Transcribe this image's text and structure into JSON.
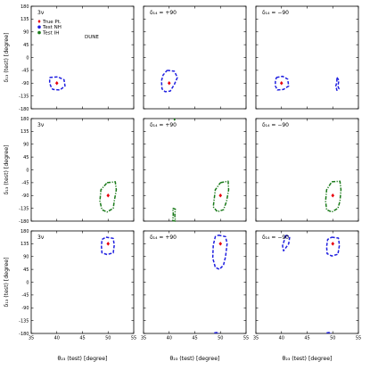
{
  "chart_data": {
    "type": "scatter",
    "layout": "3x3 grid of contour plots",
    "xlabel": "θ₂₃ (test) [degree]",
    "ylabel": "δ₁₃ (test) [degree]",
    "xlim": [
      35,
      55
    ],
    "ylim": [
      -180,
      180
    ],
    "xticks": [
      35,
      40,
      45,
      50,
      55
    ],
    "yticks": [
      -180,
      -135,
      -90,
      -45,
      0,
      45,
      90,
      135,
      180
    ],
    "legend": {
      "placement": "top-left (first panel)",
      "entries": [
        {
          "label": "True Pt.",
          "color": "#e8000b",
          "marker": "diamond"
        },
        {
          "label": "Test NH",
          "color": "#1f1fe0",
          "marker": "circle"
        },
        {
          "label": "Test IH",
          "color": "#1a7a1a",
          "marker": "circle"
        }
      ]
    },
    "experiment_label": "DUNE",
    "colors": {
      "nh": "#1f1fe0",
      "ih": "#1a7a1a",
      "true": "#e8000b"
    },
    "panels": [
      {
        "row": 0,
        "col": 0,
        "title": "3ν",
        "true_point": {
          "x": 40,
          "y": -90
        },
        "contours": [
          {
            "type": "NH",
            "points": [
              [
                38.6,
                -70
              ],
              [
                40.2,
                -68
              ],
              [
                41.4,
                -78
              ],
              [
                41.6,
                -100
              ],
              [
                40.6,
                -114
              ],
              [
                39.2,
                -112
              ],
              [
                38.8,
                -100
              ],
              [
                38.6,
                -88
              ],
              [
                38.6,
                -70
              ]
            ]
          }
        ]
      },
      {
        "row": 0,
        "col": 1,
        "title": "δ₁₄ = +90",
        "true_point": {
          "x": 40,
          "y": -90
        },
        "contours": [
          {
            "type": "NH",
            "points": [
              [
                39.6,
                -45
              ],
              [
                41,
                -48
              ],
              [
                41.6,
                -70
              ],
              [
                41,
                -95
              ],
              [
                40.2,
                -118
              ],
              [
                39.2,
                -120
              ],
              [
                38.6,
                -110
              ],
              [
                38.5,
                -82
              ],
              [
                38.8,
                -62
              ],
              [
                39.6,
                -45
              ]
            ]
          }
        ]
      },
      {
        "row": 0,
        "col": 2,
        "title": "δ₁₄ = −90",
        "true_point": {
          "x": 40,
          "y": -90
        },
        "contours": [
          {
            "type": "NH",
            "points": [
              [
                39,
                -70
              ],
              [
                40.2,
                -66
              ],
              [
                41.2,
                -76
              ],
              [
                41.4,
                -100
              ],
              [
                40.4,
                -112
              ],
              [
                39.2,
                -114
              ],
              [
                38.8,
                -100
              ],
              [
                38.8,
                -85
              ],
              [
                39,
                -70
              ]
            ]
          },
          {
            "type": "NH",
            "points": [
              [
                50.8,
                -70
              ],
              [
                51.2,
                -80
              ],
              [
                51,
                -100
              ],
              [
                51.2,
                -110
              ],
              [
                50.8,
                -115
              ],
              [
                50.6,
                -100
              ],
              [
                50.8,
                -85
              ],
              [
                50.8,
                -70
              ]
            ]
          }
        ]
      },
      {
        "row": 1,
        "col": 0,
        "title": "3ν",
        "true_point": {
          "x": 50,
          "y": -90
        },
        "contours": [
          {
            "type": "IH",
            "points": [
              [
                49.8,
                -45
              ],
              [
                51.4,
                -42
              ],
              [
                51.6,
                -70
              ],
              [
                51.2,
                -110
              ],
              [
                51,
                -135
              ],
              [
                49.8,
                -148
              ],
              [
                48.8,
                -140
              ],
              [
                48.4,
                -110
              ],
              [
                48.6,
                -70
              ],
              [
                49.8,
                -45
              ]
            ]
          }
        ]
      },
      {
        "row": 1,
        "col": 1,
        "title": "δ₁₄ = +90",
        "true_point": {
          "x": 50,
          "y": -90
        },
        "contours": [
          {
            "type": "IH",
            "points": [
              [
                50,
                -45
              ],
              [
                51.5,
                -40
              ],
              [
                51.6,
                -70
              ],
              [
                51.2,
                -110
              ],
              [
                50.6,
                -140
              ],
              [
                49.4,
                -147
              ],
              [
                48.6,
                -130
              ],
              [
                48.8,
                -100
              ],
              [
                49,
                -70
              ],
              [
                50,
                -45
              ]
            ]
          },
          {
            "type": "IH",
            "points": [
              [
                40.7,
                -135
              ],
              [
                41.2,
                -138
              ],
              [
                41.1,
                -160
              ],
              [
                41.2,
                -180
              ],
              [
                40.7,
                -178
              ],
              [
                40.8,
                -155
              ],
              [
                40.7,
                -135
              ]
            ]
          },
          {
            "type": "IH",
            "points": [
              [
                40.9,
                175
              ],
              [
                41.1,
                176
              ],
              [
                41,
                180
              ]
            ]
          }
        ]
      },
      {
        "row": 1,
        "col": 2,
        "title": "δ₁₄ = −90",
        "true_point": {
          "x": 50,
          "y": -90
        },
        "contours": [
          {
            "type": "IH",
            "points": [
              [
                49.8,
                -42
              ],
              [
                51.4,
                -40
              ],
              [
                51.6,
                -70
              ],
              [
                51.4,
                -110
              ],
              [
                51,
                -135
              ],
              [
                49.8,
                -148
              ],
              [
                48.8,
                -140
              ],
              [
                48.6,
                -110
              ],
              [
                48.8,
                -70
              ],
              [
                49.8,
                -42
              ]
            ]
          }
        ]
      },
      {
        "row": 2,
        "col": 0,
        "title": "3ν",
        "true_point": {
          "x": 50,
          "y": 135
        },
        "contours": [
          {
            "type": "NH",
            "points": [
              [
                49.6,
                158
              ],
              [
                51,
                154
              ],
              [
                51.2,
                130
              ],
              [
                51,
                103
              ],
              [
                49.8,
                97
              ],
              [
                48.8,
                103
              ],
              [
                48.7,
                125
              ],
              [
                48.8,
                150
              ],
              [
                49.6,
                158
              ]
            ]
          }
        ]
      },
      {
        "row": 2,
        "col": 1,
        "title": "δ₁₄ = +90",
        "true_point": {
          "x": 50,
          "y": 135
        },
        "contours": [
          {
            "type": "NH",
            "points": [
              [
                49.6,
                165
              ],
              [
                51,
                160
              ],
              [
                51.3,
                135
              ],
              [
                51,
                90
              ],
              [
                50.6,
                60
              ],
              [
                49.8,
                45
              ],
              [
                49,
                52
              ],
              [
                48.5,
                85
              ],
              [
                48.6,
                130
              ],
              [
                49,
                160
              ],
              [
                49.6,
                165
              ]
            ]
          },
          {
            "type": "NH",
            "points": [
              [
                48.8,
                -178
              ],
              [
                49.6,
                -176
              ],
              [
                49.6,
                -180
              ]
            ]
          }
        ]
      },
      {
        "row": 2,
        "col": 2,
        "title": "δ₁₄ = −90",
        "true_point": {
          "x": 50,
          "y": 135
        },
        "contours": [
          {
            "type": "NH",
            "points": [
              [
                49.8,
                158
              ],
              [
                51.1,
                155
              ],
              [
                51.3,
                130
              ],
              [
                51,
                98
              ],
              [
                49.8,
                92
              ],
              [
                48.9,
                100
              ],
              [
                48.8,
                125
              ],
              [
                49,
                150
              ],
              [
                49.8,
                158
              ]
            ]
          },
          {
            "type": "NH",
            "points": [
              [
                40.8,
                165
              ],
              [
                41.6,
                160
              ],
              [
                41.4,
                135
              ],
              [
                40.8,
                120
              ],
              [
                40.4,
                110
              ],
              [
                40.2,
                128
              ],
              [
                40.6,
                150
              ],
              [
                40.8,
                165
              ]
            ]
          },
          {
            "type": "NH",
            "points": [
              [
                48.8,
                -178
              ],
              [
                49.6,
                -176
              ],
              [
                49.6,
                -180
              ]
            ]
          }
        ]
      }
    ]
  }
}
